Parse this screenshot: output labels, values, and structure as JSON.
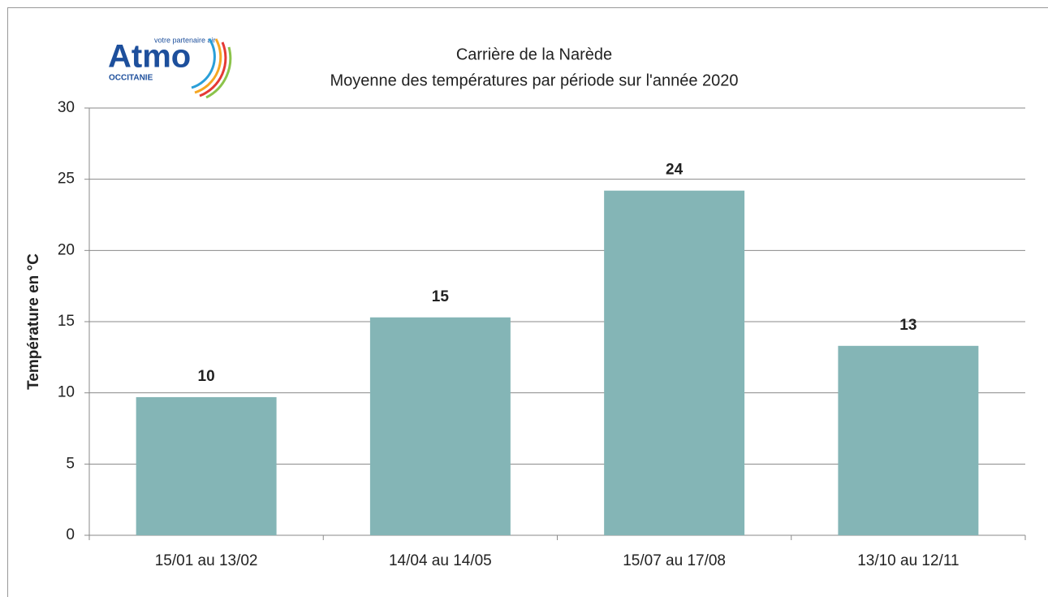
{
  "logo": {
    "name": "Atmo",
    "tagline": "votre partenaire air",
    "region": "OCCITANIE"
  },
  "chart_data": {
    "type": "bar",
    "title": [
      "Carrière de la Narède",
      "Moyenne des températures par période sur l'année 2020"
    ],
    "y_label": "Température en °C",
    "categories": [
      "15/01 au 13/02",
      "14/04 au 14/05",
      "15/07 au 17/08",
      "13/10 au 12/11"
    ],
    "values": [
      9.7,
      15.3,
      24.2,
      13.3
    ],
    "value_labels": [
      "10",
      "15",
      "24",
      "13"
    ],
    "color": "#84b5b6",
    "ylim": [
      0,
      30
    ],
    "yticks": [
      0,
      5,
      10,
      15,
      20,
      25,
      30
    ],
    "grid": true
  }
}
